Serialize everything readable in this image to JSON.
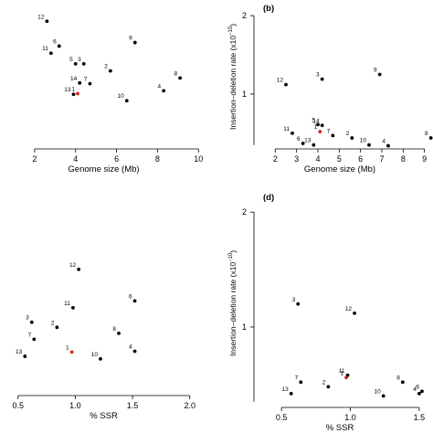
{
  "chart_data": [
    {
      "panel": "a",
      "type": "scatter",
      "xlabel": "Genome size (Mb)",
      "ylabel": "",
      "xlim": [
        0.8,
        10.3
      ],
      "ylim": [
        0.1,
        2.2
      ],
      "xticks": [
        "2",
        "4",
        "6",
        "8",
        "10"
      ],
      "yticks": [],
      "points": [
        {
          "label": "12",
          "x": 2.6,
          "y": 1.9,
          "highlight": false
        },
        {
          "label": "6",
          "x": 3.2,
          "y": 1.55,
          "highlight": false
        },
        {
          "label": "11",
          "x": 2.8,
          "y": 1.45,
          "highlight": false
        },
        {
          "label": "9",
          "x": 6.9,
          "y": 1.6,
          "highlight": false
        },
        {
          "label": "5",
          "x": 4.0,
          "y": 1.3,
          "highlight": false
        },
        {
          "label": "3",
          "x": 4.4,
          "y": 1.3,
          "highlight": false
        },
        {
          "label": "2",
          "x": 5.7,
          "y": 1.2,
          "highlight": false
        },
        {
          "label": "8",
          "x": 9.1,
          "y": 1.1,
          "highlight": false
        },
        {
          "label": "14",
          "x": 4.2,
          "y": 1.03,
          "highlight": false
        },
        {
          "label": "7",
          "x": 4.7,
          "y": 1.02,
          "highlight": false
        },
        {
          "label": "1",
          "x": 4.1,
          "y": 0.88,
          "highlight": true
        },
        {
          "label": "13",
          "x": 3.9,
          "y": 0.87,
          "highlight": false
        },
        {
          "label": "4",
          "x": 8.3,
          "y": 0.92,
          "highlight": false
        },
        {
          "label": "10",
          "x": 6.5,
          "y": 0.78,
          "highlight": false
        }
      ]
    },
    {
      "panel": "b",
      "tag": "(b)",
      "type": "scatter",
      "xlabel": "Genome size (Mb)",
      "ylabel": "Insertion–deletion rate (x10",
      "ylabel_exp": "−10",
      "ylabel_close": ")",
      "xlim": [
        1.0,
        9.4
      ],
      "ylim": [
        0.3,
        2.2
      ],
      "xticks": [
        "2",
        "3",
        "4",
        "5",
        "6",
        "7",
        "8",
        "9"
      ],
      "yticks": [
        "1",
        "2"
      ],
      "points": [
        {
          "label": "12",
          "x": 2.5,
          "y": 1.12,
          "highlight": false
        },
        {
          "label": "3",
          "x": 4.2,
          "y": 1.19,
          "highlight": false
        },
        {
          "label": "9",
          "x": 6.9,
          "y": 1.25,
          "highlight": false
        },
        {
          "label": "5",
          "x": 4.0,
          "y": 0.61,
          "highlight": false
        },
        {
          "label": "14",
          "x": 4.2,
          "y": 0.6,
          "highlight": false
        },
        {
          "label": "1",
          "x": 4.1,
          "y": 0.52,
          "highlight": true
        },
        {
          "label": "7",
          "x": 4.7,
          "y": 0.47,
          "highlight": false
        },
        {
          "label": "11",
          "x": 2.8,
          "y": 0.5,
          "highlight": false
        },
        {
          "label": "2",
          "x": 5.6,
          "y": 0.44,
          "highlight": false
        },
        {
          "label": "8",
          "x": 9.3,
          "y": 0.44,
          "highlight": false
        },
        {
          "label": "6",
          "x": 3.3,
          "y": 0.37,
          "highlight": false
        },
        {
          "label": "13",
          "x": 3.8,
          "y": 0.35,
          "highlight": false
        },
        {
          "label": "10",
          "x": 6.4,
          "y": 0.35,
          "highlight": false
        },
        {
          "label": "4",
          "x": 7.3,
          "y": 0.34,
          "highlight": false
        }
      ]
    },
    {
      "panel": "c",
      "type": "scatter",
      "xlabel": "% SSR",
      "ylabel": "",
      "xlim": [
        0.43,
        2.13
      ],
      "ylim": [
        0.1,
        2.2
      ],
      "xticks": [
        "0.5",
        "1.0",
        "1.5",
        "2.0"
      ],
      "yticks": [],
      "points": [
        {
          "label": "12",
          "x": 1.03,
          "y": 1.58,
          "highlight": false
        },
        {
          "label": "6",
          "x": 1.52,
          "y": 1.21,
          "highlight": false
        },
        {
          "label": "11",
          "x": 0.98,
          "y": 1.13,
          "highlight": false
        },
        {
          "label": "3",
          "x": 0.62,
          "y": 0.96,
          "highlight": false
        },
        {
          "label": "2",
          "x": 0.84,
          "y": 0.9,
          "highlight": false
        },
        {
          "label": "8",
          "x": 1.38,
          "y": 0.83,
          "highlight": false
        },
        {
          "label": "7",
          "x": 0.64,
          "y": 0.76,
          "highlight": false
        },
        {
          "label": "4",
          "x": 1.52,
          "y": 0.62,
          "highlight": false
        },
        {
          "label": "1",
          "x": 0.97,
          "y": 0.61,
          "highlight": true
        },
        {
          "label": "13",
          "x": 0.56,
          "y": 0.56,
          "highlight": false
        },
        {
          "label": "10",
          "x": 1.22,
          "y": 0.53,
          "highlight": false
        }
      ]
    },
    {
      "panel": "d",
      "tag": "(d)",
      "type": "scatter",
      "xlabel": "% SSR",
      "ylabel": "Insertion–deletion rate (x10",
      "ylabel_exp": "−10",
      "ylabel_close": ")",
      "xlim": [
        0.3,
        1.6
      ],
      "ylim": [
        0.3,
        2.2
      ],
      "xticks": [
        "0.5",
        "1.0",
        "1.5"
      ],
      "yticks": [
        "1",
        "2"
      ],
      "points": [
        {
          "label": "3",
          "x": 0.62,
          "y": 1.2,
          "highlight": false
        },
        {
          "label": "12",
          "x": 1.03,
          "y": 1.12,
          "highlight": false
        },
        {
          "label": "11",
          "x": 0.98,
          "y": 0.58,
          "highlight": false
        },
        {
          "label": "1",
          "x": 0.97,
          "y": 0.56,
          "highlight": true
        },
        {
          "label": "8",
          "x": 1.38,
          "y": 0.52,
          "highlight": false
        },
        {
          "label": "7",
          "x": 0.64,
          "y": 0.52,
          "highlight": false
        },
        {
          "label": "2",
          "x": 0.84,
          "y": 0.48,
          "highlight": false
        },
        {
          "label": "6",
          "x": 1.52,
          "y": 0.44,
          "highlight": false
        },
        {
          "label": "4",
          "x": 1.5,
          "y": 0.42,
          "highlight": false
        },
        {
          "label": "13",
          "x": 0.57,
          "y": 0.42,
          "highlight": false
        },
        {
          "label": "10",
          "x": 1.24,
          "y": 0.4,
          "highlight": false
        }
      ]
    }
  ],
  "colors": {
    "point": "#000000",
    "highlight": "#d7261e",
    "axis": "#000000"
  }
}
